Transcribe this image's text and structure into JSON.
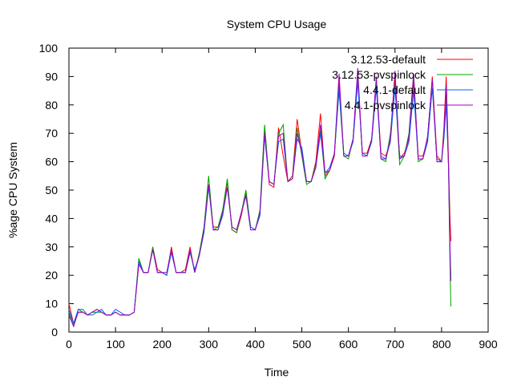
{
  "chart_data": {
    "type": "line",
    "title": "System CPU Usage",
    "xlabel": "Time",
    "ylabel": "%age CPU System",
    "xlim": [
      0,
      900
    ],
    "ylim": [
      0,
      100
    ],
    "xticks": [
      0,
      100,
      200,
      300,
      400,
      500,
      600,
      700,
      800,
      900
    ],
    "yticks": [
      0,
      10,
      20,
      30,
      40,
      50,
      60,
      70,
      80,
      90,
      100
    ],
    "grid": false,
    "legend_position": "top-right",
    "series": [
      {
        "name": "3.12.53-default",
        "color": "#ff0000",
        "x": [
          0,
          10,
          20,
          30,
          40,
          50,
          60,
          70,
          80,
          90,
          100,
          110,
          120,
          130,
          140,
          150,
          160,
          170,
          180,
          190,
          200,
          210,
          220,
          230,
          240,
          250,
          260,
          270,
          280,
          290,
          300,
          310,
          320,
          330,
          340,
          350,
          360,
          370,
          380,
          390,
          400,
          410,
          420,
          430,
          440,
          450,
          460,
          470,
          480,
          490,
          500,
          510,
          520,
          530,
          540,
          550,
          560,
          570,
          580,
          590,
          600,
          610,
          620,
          630,
          640,
          650,
          660,
          670,
          680,
          690,
          700,
          710,
          720,
          730,
          740,
          750,
          760,
          770,
          780,
          790,
          800,
          805,
          810,
          815,
          818,
          820
        ],
        "y": [
          10,
          3,
          7,
          7,
          6,
          7,
          8,
          7,
          6,
          6,
          7,
          6,
          6,
          6,
          7,
          24,
          21,
          21,
          30,
          22,
          21,
          20,
          30,
          21,
          21,
          22,
          30,
          21,
          27,
          36,
          52,
          37,
          37,
          42,
          53,
          36,
          35,
          41,
          49,
          37,
          36,
          42,
          71,
          52,
          51,
          72,
          62,
          53,
          55,
          75,
          63,
          53,
          53,
          60,
          77,
          55,
          57,
          62,
          88,
          62,
          62,
          68,
          90,
          63,
          63,
          68,
          88,
          63,
          62,
          67,
          89,
          61,
          63,
          68,
          88,
          62,
          62,
          68,
          90,
          62,
          60,
          72,
          90,
          60,
          41,
          32
        ]
      },
      {
        "name": "3.12.53-pvspinlock",
        "color": "#00a000",
        "x": [
          0,
          10,
          20,
          30,
          40,
          50,
          60,
          70,
          80,
          90,
          100,
          110,
          120,
          130,
          140,
          150,
          160,
          170,
          180,
          190,
          200,
          210,
          220,
          230,
          240,
          250,
          260,
          270,
          280,
          290,
          300,
          310,
          320,
          330,
          340,
          350,
          360,
          370,
          380,
          390,
          400,
          410,
          420,
          430,
          440,
          450,
          460,
          470,
          480,
          490,
          500,
          510,
          520,
          530,
          540,
          550,
          560,
          570,
          580,
          590,
          600,
          610,
          620,
          630,
          640,
          650,
          660,
          670,
          680,
          690,
          700,
          710,
          720,
          730,
          740,
          750,
          760,
          770,
          780,
          790,
          800,
          805,
          810,
          815,
          818,
          820
        ],
        "y": [
          7,
          2,
          8,
          7,
          6,
          7,
          7,
          7,
          6,
          6,
          7,
          6,
          6,
          6,
          7,
          26,
          21,
          21,
          30,
          21,
          21,
          20,
          29,
          21,
          21,
          21,
          29,
          21,
          28,
          37,
          55,
          36,
          37,
          43,
          54,
          36,
          35,
          42,
          50,
          37,
          36,
          43,
          73,
          53,
          52,
          70,
          73,
          53,
          54,
          72,
          62,
          52,
          53,
          59,
          71,
          54,
          57,
          63,
          85,
          62,
          61,
          68,
          90,
          62,
          62,
          68,
          88,
          61,
          60,
          70,
          87,
          59,
          62,
          70,
          91,
          60,
          61,
          69,
          89,
          60,
          60,
          70,
          84,
          58,
          25,
          9
        ]
      },
      {
        "name": "4.4.1-default",
        "color": "#0060ff",
        "x": [
          0,
          10,
          20,
          30,
          40,
          50,
          60,
          70,
          80,
          90,
          100,
          110,
          120,
          130,
          140,
          150,
          160,
          170,
          180,
          190,
          200,
          210,
          220,
          230,
          240,
          250,
          260,
          270,
          280,
          290,
          300,
          310,
          320,
          330,
          340,
          350,
          360,
          370,
          380,
          390,
          400,
          410,
          420,
          430,
          440,
          450,
          460,
          470,
          480,
          490,
          500,
          510,
          520,
          530,
          540,
          550,
          560,
          570,
          580,
          590,
          600,
          610,
          620,
          630,
          640,
          650,
          660,
          670,
          680,
          690,
          700,
          710,
          720,
          730,
          740,
          750,
          760,
          770,
          780,
          790,
          800,
          805,
          810,
          815,
          818,
          820
        ],
        "y": [
          8,
          3,
          8,
          8,
          6,
          6,
          7,
          8,
          6,
          6,
          8,
          7,
          6,
          6,
          7,
          25,
          21,
          21,
          29,
          21,
          21,
          20,
          28,
          21,
          21,
          21,
          28,
          22,
          27,
          35,
          51,
          36,
          36,
          41,
          51,
          37,
          36,
          42,
          48,
          37,
          36,
          41,
          69,
          53,
          52,
          67,
          68,
          53,
          54,
          68,
          65,
          53,
          53,
          58,
          70,
          56,
          58,
          63,
          86,
          63,
          62,
          67,
          88,
          63,
          62,
          67,
          86,
          62,
          61,
          67,
          86,
          62,
          62,
          67,
          85,
          61,
          61,
          67,
          86,
          61,
          60,
          68,
          80,
          58,
          30,
          18
        ]
      },
      {
        "name": "4.4.1-pvspinlock",
        "color": "#a000c0",
        "x": [
          0,
          10,
          20,
          30,
          40,
          50,
          60,
          70,
          80,
          90,
          100,
          110,
          120,
          130,
          140,
          150,
          160,
          170,
          180,
          190,
          200,
          210,
          220,
          230,
          240,
          250,
          260,
          270,
          280,
          290,
          300,
          310,
          320,
          330,
          340,
          350,
          360,
          370,
          380,
          390,
          400,
          410,
          420,
          430,
          440,
          450,
          460,
          470,
          480,
          490,
          500,
          510,
          520,
          530,
          540,
          550,
          560,
          570,
          580,
          590,
          600,
          610,
          620,
          630,
          640,
          650,
          660,
          670,
          680,
          690,
          700,
          710,
          720,
          730,
          740,
          750,
          760,
          770,
          780,
          790,
          800,
          805,
          810,
          815,
          818,
          820
        ],
        "y": [
          6,
          2,
          7,
          7,
          6,
          7,
          8,
          7,
          6,
          6,
          7,
          6,
          6,
          6,
          7,
          24,
          21,
          21,
          29,
          21,
          21,
          21,
          29,
          21,
          21,
          21,
          29,
          21,
          27,
          36,
          52,
          36,
          36,
          42,
          51,
          37,
          36,
          42,
          48,
          36,
          36,
          42,
          70,
          53,
          52,
          69,
          70,
          53,
          54,
          70,
          63,
          53,
          53,
          58,
          73,
          56,
          57,
          63,
          91,
          62,
          62,
          68,
          93,
          62,
          62,
          68,
          90,
          61,
          61,
          68,
          92,
          61,
          62,
          69,
          91,
          61,
          61,
          69,
          89,
          60,
          60,
          70,
          87,
          58,
          31,
          18
        ]
      }
    ]
  }
}
